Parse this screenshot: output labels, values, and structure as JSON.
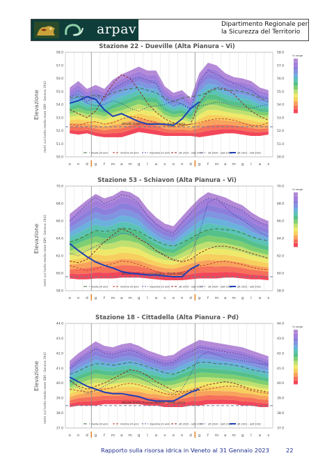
{
  "header": {
    "logo_text": "arpav",
    "title_line1": "Dipartimento Regionale per",
    "title_line2": "la Sicurezza del Territorio"
  },
  "chart_data": [
    {
      "type": "area",
      "title": "Stazione 22 - Dueville (Alta Pianura - Vi)",
      "ylabel": "Elevazione",
      "ylabel2": "metri sul livello medio mare IGM - Genova 1942",
      "ylim": [
        50.0,
        58.0
      ],
      "yticks": [
        "58.0",
        "57.0",
        "56.0",
        "55.0",
        "54.0",
        "53.0",
        "52.0",
        "51.0",
        "50.0"
      ],
      "months": [
        "o",
        "n",
        "d",
        "g",
        "f",
        "m",
        "a",
        "m",
        "g",
        "l",
        "a",
        "s",
        "o",
        "n",
        "d",
        "g",
        "f",
        "m",
        "a",
        "m",
        "g",
        "l",
        "a",
        "s"
      ],
      "threshold": 52.3,
      "threshold_label": "attuale limite di osservazione - fondo pozzo",
      "envelope": {
        "max": [
          55.3,
          55.8,
          55.2,
          55.5,
          55.2,
          55.9,
          56.3,
          56.6,
          56.9,
          56.6,
          56.6,
          55.4,
          54.9,
          55.1,
          54.5,
          56.4,
          57.2,
          57.0,
          56.4,
          56.1,
          56.0,
          55.8,
          55.3,
          55.1
        ],
        "min": [
          51.8,
          51.7,
          51.8,
          51.6,
          51.5,
          51.5,
          51.5,
          51.7,
          51.9,
          51.8,
          51.7,
          51.6,
          51.6,
          51.6,
          51.6,
          51.5,
          51.6,
          51.7,
          51.8,
          51.8,
          51.7,
          51.6,
          51.6,
          51.7
        ]
      },
      "series": [
        {
          "name": "media 20 anni",
          "color": "#3a6e3a",
          "dash": "5,3",
          "values": [
            54.5,
            54.6,
            54.6,
            54.7,
            54.6,
            54.9,
            55.1,
            55.2,
            55.3,
            55.1,
            54.9,
            54.5,
            54.2,
            54.5,
            54.6,
            54.7,
            54.9,
            55.2,
            55.1,
            55.1,
            55.0,
            54.8,
            54.5,
            54.2
          ]
        },
        {
          "name": "minimo 20 anni",
          "color": "#c0392b",
          "dash": "3,2",
          "values": [
            52.5,
            52.4,
            52.6,
            52.7,
            52.5,
            52.6,
            52.9,
            53.1,
            53.0,
            52.8,
            52.6,
            52.4,
            52.3,
            52.4,
            52.5,
            52.6,
            52.8,
            52.9,
            52.9,
            52.8,
            52.6,
            52.4,
            52.4,
            52.6
          ]
        },
        {
          "name": "massimo 20 anni",
          "color": "#4a4aa0",
          "dash": "2,2",
          "values": [
            54.6,
            54.8,
            54.2,
            54.6,
            54.4,
            55.2,
            55.6,
            55.9,
            56.1,
            55.9,
            55.6,
            54.4,
            53.9,
            54.1,
            53.6,
            55.7,
            56.6,
            56.3,
            55.9,
            55.6,
            55.4,
            55.1,
            54.6,
            54.4
          ]
        },
        {
          "name": "ott 2015 - sett 2016",
          "color": "#8b1a1a",
          "dash": "3,2",
          "values": [
            53.6,
            53.3,
            53.0,
            53.5,
            54.6,
            55.6,
            56.3,
            56.0,
            55.1,
            54.1,
            53.4,
            52.9,
            52.6,
            52.4,
            52.5,
            54.1,
            55.0,
            55.3,
            55.2,
            54.8,
            54.1,
            53.5,
            53.1,
            52.8
          ]
        },
        {
          "name": "ott 2020 - sett 2021",
          "color": "#2a2a8a",
          "dash": "1,2",
          "values": [
            54.3,
            54.6,
            54.1,
            53.9,
            54.0,
            54.3,
            54.1,
            53.7,
            53.5,
            53.8,
            53.9,
            54.0,
            54.3,
            54.0,
            53.7,
            53.9,
            54.0,
            54.2,
            54.1,
            53.9,
            53.8,
            53.7,
            53.9,
            54.0
          ]
        },
        {
          "name": "ott 2021 - sett 2022",
          "color": "#1f3fb5",
          "width": 2,
          "values": [
            54.1,
            54.3,
            54.6,
            54.4,
            53.6,
            53.1,
            53.3,
            53.0,
            52.7,
            52.5,
            52.5,
            52.5,
            52.4,
            52.9,
            53.7,
            54.2,
            null,
            null,
            null,
            null,
            null,
            null,
            null,
            null
          ]
        }
      ]
    },
    {
      "type": "area",
      "title": "Stazione 53 - Schiavon (Alta Pianura - Vi)",
      "ylabel": "Elevazione",
      "ylabel2": "metri sul livello medio mare IGM - Genova 1942",
      "ylim": [
        58.0,
        70.0
      ],
      "yticks": [
        "70.0",
        "68.0",
        "66.0",
        "64.0",
        "62.0",
        "60.0",
        "58.0"
      ],
      "months": [
        "o",
        "n",
        "d",
        "g",
        "f",
        "m",
        "a",
        "m",
        "g",
        "l",
        "a",
        "s",
        "o",
        "n",
        "d",
        "g",
        "f",
        "m",
        "a",
        "m",
        "g",
        "l",
        "a",
        "s"
      ],
      "threshold": 59.6,
      "threshold_label": "attuale limite di osservazione - fondo pozzo",
      "envelope": {
        "max": [
          66.8,
          67.6,
          68.4,
          69.1,
          68.6,
          68.9,
          69.5,
          69.3,
          68.7,
          67.4,
          66.4,
          65.7,
          65.4,
          66.5,
          67.6,
          68.6,
          69.3,
          69.0,
          68.7,
          68.2,
          67.8,
          67.0,
          66.4,
          66.0
        ],
        "min": [
          59.4,
          59.3,
          59.3,
          59.4,
          59.4,
          59.4,
          59.5,
          59.5,
          59.5,
          59.4,
          59.3,
          59.2,
          59.2,
          59.2,
          59.3,
          59.4,
          59.4,
          59.4,
          59.5,
          59.5,
          59.4,
          59.3,
          59.3,
          59.2
        ]
      },
      "series": [
        {
          "name": "media 20 anni",
          "color": "#3a6e3a",
          "dash": "5,3",
          "values": [
            63.6,
            63.9,
            64.4,
            64.9,
            64.8,
            64.9,
            65.2,
            65.1,
            64.8,
            64.2,
            63.7,
            63.3,
            63.1,
            63.5,
            64.0,
            64.6,
            65.0,
            65.1,
            65.0,
            64.9,
            64.6,
            64.2,
            63.9,
            63.7
          ]
        },
        {
          "name": "minimo 20 anni",
          "color": "#c0392b",
          "dash": "3,2",
          "values": [
            60.9,
            60.6,
            60.3,
            60.5,
            60.9,
            61.1,
            61.4,
            61.3,
            61.0,
            60.6,
            60.2,
            59.9,
            59.9,
            60.1,
            60.4,
            60.8,
            61.0,
            61.3,
            61.4,
            61.2,
            61.0,
            60.7,
            60.5,
            60.4
          ]
        },
        {
          "name": "massimo 20 anni",
          "color": "#4a4aa0",
          "dash": "2,2",
          "values": [
            66.0,
            67.0,
            67.9,
            68.7,
            68.0,
            68.4,
            69.0,
            68.8,
            68.0,
            66.6,
            65.6,
            64.9,
            64.6,
            65.8,
            66.9,
            68.0,
            68.6,
            68.4,
            68.0,
            67.6,
            67.2,
            66.4,
            65.8,
            65.5
          ]
        },
        {
          "name": "ott 2015 - sett 2016",
          "color": "#8b1a1a",
          "dash": "3,2",
          "values": [
            61.4,
            61.2,
            61.6,
            62.6,
            63.6,
            64.4,
            65.1,
            64.7,
            64.0,
            63.4,
            62.6,
            62.0,
            61.5,
            61.3,
            61.6,
            62.3,
            62.8,
            63.1,
            63.1,
            62.9,
            62.6,
            62.3,
            62.0,
            61.7
          ]
        },
        {
          "name": "ott 2020 - sett 2021",
          "color": "#2a2a8a",
          "dash": "1,2",
          "values": [
            62.3,
            62.0,
            62.6,
            63.1,
            63.6,
            64.1,
            64.6,
            64.4,
            63.9,
            63.4,
            62.6,
            62.1,
            61.6,
            61.4,
            62.1,
            64.6,
            68.1,
            68.6,
            67.6,
            66.7,
            66.1,
            65.4,
            64.7,
            64.2
          ]
        },
        {
          "name": "ott 2021 - sett 2022",
          "color": "#1f3fb5",
          "width": 2,
          "values": [
            63.4,
            62.6,
            61.9,
            61.3,
            60.9,
            60.6,
            60.2,
            60.0,
            59.9,
            59.8,
            59.8,
            59.7,
            59.6,
            59.6,
            60.5,
            61.0,
            null,
            null,
            null,
            null,
            null,
            null,
            null,
            null
          ]
        }
      ]
    },
    {
      "type": "area",
      "title": "Stazione 18 - Cittadella (Alta Pianura - Pd)",
      "ylabel": "Elevazione",
      "ylabel2": "metri sul livello medio mare IGM - Genova 1942",
      "ylim": [
        37.0,
        44.0
      ],
      "yticks": [
        "44.0",
        "43.0",
        "42.0",
        "41.0",
        "40.0",
        "39.0",
        "38.0",
        "37.0"
      ],
      "months": [
        "o",
        "n",
        "d",
        "g",
        "f",
        "m",
        "a",
        "m",
        "g",
        "l",
        "a",
        "s",
        "o",
        "n",
        "d",
        "g",
        "f",
        "m",
        "a",
        "m",
        "g",
        "l",
        "a",
        "s"
      ],
      "threshold": 38.5,
      "threshold_label": "attuale limite di osservazione - fondo pozzo",
      "envelope": {
        "max": [
          41.5,
          42.0,
          42.4,
          42.8,
          42.5,
          42.4,
          42.6,
          42.7,
          42.5,
          42.2,
          42.0,
          41.8,
          41.9,
          42.3,
          42.6,
          42.9,
          42.8,
          42.7,
          42.6,
          42.5,
          42.4,
          42.2,
          42.0,
          41.8
        ],
        "min": [
          38.4,
          38.5,
          38.5,
          38.5,
          38.6,
          38.6,
          38.6,
          38.6,
          38.6,
          38.5,
          38.5,
          38.4,
          38.4,
          38.4,
          38.5,
          38.5,
          38.6,
          38.6,
          38.6,
          38.6,
          38.5,
          38.5,
          38.4,
          38.4
        ]
      },
      "series": [
        {
          "name": "media 20 anni",
          "color": "#3a6e3a",
          "dash": "5,3",
          "values": [
            40.6,
            40.8,
            41.1,
            41.3,
            41.3,
            41.2,
            41.3,
            41.4,
            41.3,
            41.1,
            40.9,
            40.7,
            40.6,
            40.8,
            41.1,
            41.4,
            41.4,
            41.3,
            41.3,
            41.2,
            41.1,
            40.9,
            40.8,
            40.7
          ]
        },
        {
          "name": "minimo 20 anni",
          "color": "#c0392b",
          "dash": "3,2",
          "values": [
            39.6,
            39.5,
            39.4,
            39.5,
            39.6,
            39.7,
            39.9,
            40.0,
            39.9,
            39.7,
            39.5,
            39.3,
            39.2,
            39.3,
            39.4,
            39.5,
            39.6,
            39.7,
            39.8,
            39.8,
            39.7,
            39.5,
            39.4,
            39.3
          ]
        },
        {
          "name": "massimo 20 anni",
          "color": "#4a4aa0",
          "dash": "2,2",
          "values": [
            41.0,
            41.5,
            41.9,
            42.3,
            42.0,
            41.9,
            42.1,
            42.2,
            42.0,
            41.7,
            41.5,
            41.3,
            41.4,
            41.8,
            42.1,
            42.4,
            42.3,
            42.2,
            42.1,
            42.0,
            41.9,
            41.7,
            41.5,
            41.3
          ]
        },
        {
          "name": "ott 2015 - sett 2016",
          "color": "#8b1a1a",
          "dash": "3,2",
          "values": [
            40.2,
            39.8,
            39.6,
            39.8,
            40.0,
            40.3,
            40.6,
            40.9,
            40.8,
            40.5,
            40.1,
            39.8,
            39.5,
            39.4,
            39.5,
            39.7,
            39.9,
            40.0,
            40.1,
            40.0,
            39.8,
            39.6,
            39.5,
            39.4
          ]
        },
        {
          "name": "ott 2020 - sett 2021",
          "color": "#2a2a8a",
          "dash": "1,2",
          "values": [
            40.2,
            39.7,
            39.3,
            39.5,
            39.8,
            40.1,
            40.4,
            40.6,
            40.4,
            40.1,
            39.8,
            39.5,
            39.3,
            39.6,
            40.6,
            41.8,
            42.1,
            41.9,
            41.7,
            41.6,
            41.5,
            41.4,
            41.3,
            41.2
          ]
        },
        {
          "name": "ott 2021 - sett 2022",
          "color": "#1f3fb5",
          "width": 2,
          "values": [
            40.4,
            40.1,
            39.8,
            39.6,
            39.4,
            39.3,
            39.3,
            39.2,
            39.1,
            38.9,
            38.8,
            38.8,
            38.8,
            39.1,
            39.4,
            39.6,
            null,
            null,
            null,
            null,
            null,
            null,
            null,
            null
          ]
        }
      ]
    }
  ],
  "legend_title": "% range",
  "footer": {
    "text": "Rapporto sulla risorsa idrica in Veneto al 31 Gennaio 2023",
    "page": "22"
  }
}
